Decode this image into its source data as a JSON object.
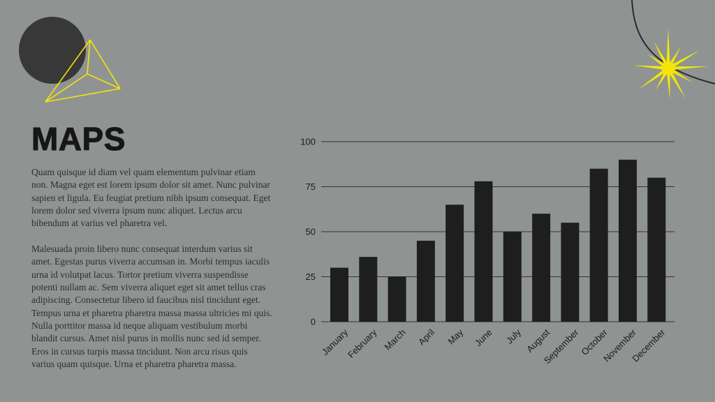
{
  "slide": {
    "title": "MAPS"
  },
  "paragraphs": [
    "Quam quisque id diam vel quam elementum pulvinar etiam non. Magna eget est lorem ipsum dolor sit amet. Nunc pulvinar sapien et ligula. Eu feugiat pretium nibh ipsum consequat. Eget lorem dolor sed viverra ipsum nunc aliquet. Lectus arcu bibendum at varius vel pharetra vel.",
    "Malesuada proin libero nunc consequat interdum varius sit amet. Egestas purus viverra accumsan in. Morbi tempus iaculis urna id volutpat lacus. Tortor pretium viverra suspendisse potenti nullam ac. Sem viverra aliquet eget sit amet tellus cras adipiscing. Consectetur libero id faucibus nisl tincidunt eget. Tempus urna et pharetra pharetra massa massa ultricies mi quis. Nulla porttitor massa id neque aliquam vestibulum morbi blandit cursus. Amet nisl purus in mollis nunc sed id semper. Eros in cursus turpis massa tincidunt. Non arcu risus quis varius quam quisque. Urna et pharetra pharetra massa."
  ],
  "colors": {
    "background": "#8f9492",
    "bar": "#1e1e1e",
    "grid": "#333333",
    "title_text": "#171717",
    "body_text": "#2e2e2e",
    "circle": "#383838",
    "accent_yellow": "#f4e40a",
    "curve_line": "#2a2a2a"
  },
  "chart_data": {
    "type": "bar",
    "categories": [
      "January",
      "February",
      "March",
      "April",
      "May",
      "June",
      "July",
      "August",
      "September",
      "October",
      "November",
      "December"
    ],
    "values": [
      30,
      36,
      25,
      45,
      65,
      78,
      50,
      60,
      55,
      85,
      90,
      80
    ],
    "title": "",
    "xlabel": "",
    "ylabel": "",
    "ylim": [
      0,
      100
    ],
    "yticks": [
      0,
      25,
      50,
      75,
      100
    ],
    "grid": true,
    "legend": false,
    "x_tick_rotation": 45,
    "bar_color": "#1e1e1e"
  }
}
